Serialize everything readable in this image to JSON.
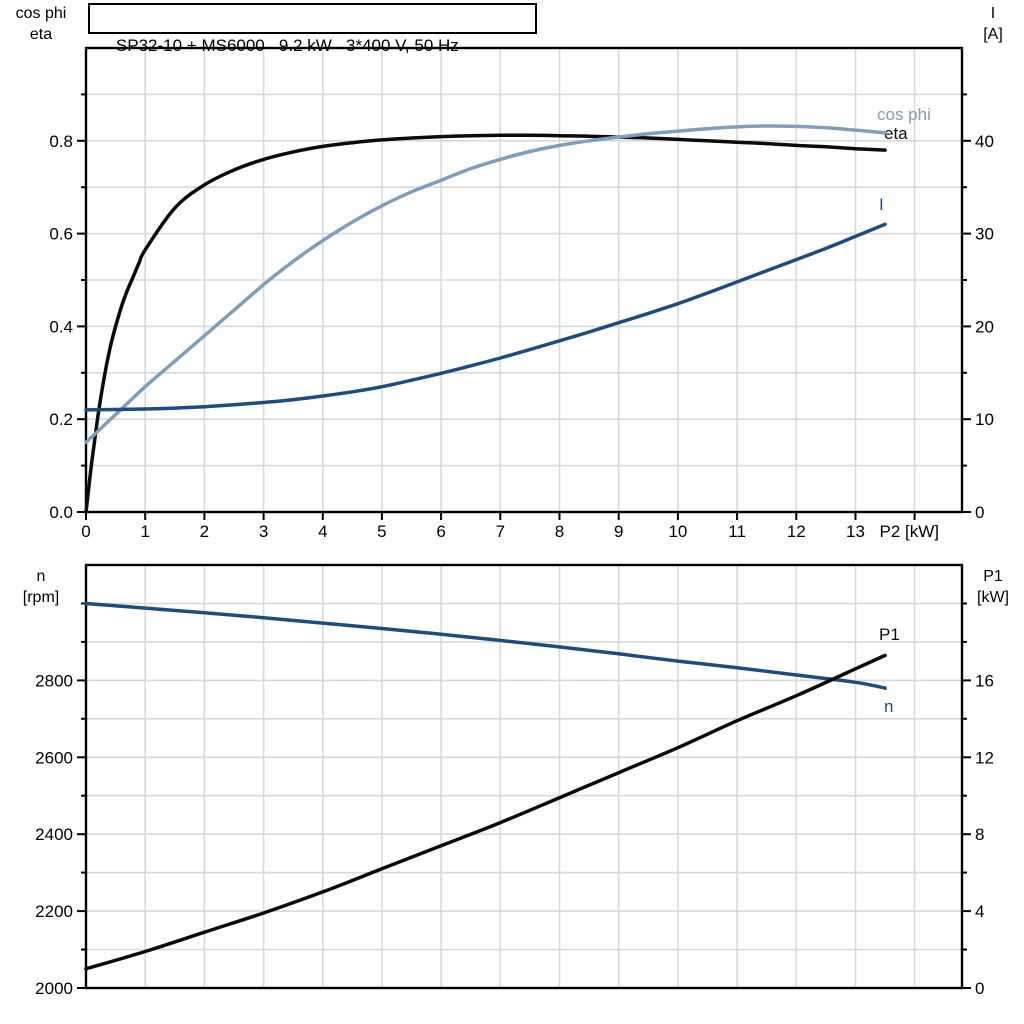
{
  "title": "SP32-10 + MS6000   9.2 kW   3*400 V, 50 Hz",
  "colors": {
    "black_curve": "#0B0B0B",
    "dark_blue_curve": "#1B4D80",
    "light_blue_curve": "#7E9EBD",
    "grid": "#D6D9DC",
    "axis": "#000000",
    "text": "#000000"
  },
  "chart_data": [
    {
      "name": "motor-curves-top",
      "type": "line",
      "title": "SP32-10 + MS6000   9.2 kW   3*400 V, 50 Hz",
      "x_label": "P2 [kW]",
      "x_range": [
        0,
        14.8
      ],
      "x_ticks": [
        "0",
        "1",
        "2",
        "3",
        "4",
        "5",
        "6",
        "7",
        "8",
        "9",
        "10",
        "11",
        "12",
        "13"
      ],
      "grid": true,
      "y_left": {
        "title_lines": [
          "cos phi",
          "eta"
        ],
        "ticks": [
          "0.0",
          "0.2",
          "0.4",
          "0.6",
          "0.8"
        ],
        "range": [
          0,
          1.0
        ]
      },
      "y_right": {
        "title_lines": [
          "I",
          "[A]"
        ],
        "ticks": [
          "0",
          "10",
          "20",
          "30",
          "40"
        ],
        "range": [
          0,
          50
        ]
      },
      "series": [
        {
          "name": "eta",
          "label": "eta",
          "axis": "left",
          "color": "#0B0B0B",
          "x": [
            0,
            0.1,
            0.2,
            0.3,
            0.4,
            0.5,
            0.6,
            0.7,
            0.8,
            0.9,
            1,
            1.5,
            2,
            2.5,
            3,
            3.5,
            4,
            4.5,
            5,
            5.5,
            6,
            6.5,
            7,
            7.5,
            8,
            8.5,
            9,
            9.5,
            10,
            10.5,
            11,
            11.5,
            12,
            12.5,
            13,
            13.5
          ],
          "y": [
            0,
            0.11,
            0.205,
            0.285,
            0.35,
            0.4,
            0.443,
            0.478,
            0.508,
            0.538,
            0.565,
            0.655,
            0.705,
            0.737,
            0.76,
            0.776,
            0.788,
            0.796,
            0.802,
            0.806,
            0.809,
            0.811,
            0.812,
            0.812,
            0.811,
            0.81,
            0.808,
            0.806,
            0.803,
            0.8,
            0.797,
            0.794,
            0.79,
            0.787,
            0.783,
            0.78
          ]
        },
        {
          "name": "cos_phi",
          "label": "cos phi",
          "axis": "left",
          "color": "#7E9EBD",
          "x": [
            0,
            0.5,
            1,
            1.5,
            2,
            2.5,
            3,
            3.5,
            4,
            4.5,
            5,
            5.5,
            6,
            6.5,
            7,
            7.5,
            8,
            8.5,
            9,
            9.5,
            10,
            10.5,
            11,
            11.5,
            12,
            12.5,
            13,
            13.5
          ],
          "y": [
            0.15,
            0.21,
            0.27,
            0.325,
            0.38,
            0.435,
            0.49,
            0.54,
            0.585,
            0.625,
            0.66,
            0.69,
            0.715,
            0.74,
            0.76,
            0.777,
            0.79,
            0.8,
            0.808,
            0.815,
            0.821,
            0.826,
            0.83,
            0.832,
            0.831,
            0.828,
            0.823,
            0.817
          ]
        },
        {
          "name": "I",
          "label": "I",
          "axis": "right",
          "color": "#1B4D80",
          "x": [
            0,
            0.5,
            1,
            1.5,
            2,
            2.5,
            3,
            3.5,
            4,
            4.5,
            5,
            5.5,
            6,
            6.5,
            7,
            7.5,
            8,
            8.5,
            9,
            9.5,
            10,
            10.5,
            11,
            11.5,
            12,
            12.5,
            13,
            13.5
          ],
          "y": [
            11.0,
            11.05,
            11.1,
            11.2,
            11.35,
            11.55,
            11.8,
            12.1,
            12.5,
            12.95,
            13.5,
            14.2,
            14.95,
            15.75,
            16.6,
            17.5,
            18.45,
            19.4,
            20.4,
            21.4,
            22.45,
            23.6,
            24.8,
            26.0,
            27.2,
            28.4,
            29.7,
            31.0
          ]
        }
      ]
    },
    {
      "name": "motor-curves-bottom",
      "type": "line",
      "title": "",
      "x_label": "",
      "x_range": [
        0,
        14.8
      ],
      "x_ticks": [],
      "grid": true,
      "y_left": {
        "title_lines": [
          "n",
          "[rpm]"
        ],
        "ticks": [
          "2000",
          "2200",
          "2400",
          "2600",
          "2800"
        ],
        "range": [
          2000,
          3100
        ]
      },
      "y_right": {
        "title_lines": [
          "P1",
          "[kW]"
        ],
        "ticks": [
          "0",
          "4",
          "8",
          "12",
          "16"
        ],
        "range": [
          0,
          22
        ]
      },
      "series": [
        {
          "name": "n",
          "label": "n",
          "axis": "left",
          "color": "#1B4D80",
          "x": [
            0,
            1,
            2,
            3,
            4,
            5,
            6,
            7,
            8,
            9,
            10,
            11,
            12,
            13,
            13.5
          ],
          "y": [
            3000,
            2988,
            2976,
            2963,
            2949,
            2935,
            2920,
            2904,
            2887,
            2869,
            2850,
            2833,
            2814,
            2795,
            2780
          ]
        },
        {
          "name": "P1",
          "label": "P1",
          "axis": "right",
          "color": "#0B0B0B",
          "x": [
            0,
            1,
            2,
            3,
            4,
            5,
            6,
            7,
            8,
            9,
            10,
            11,
            12,
            13,
            13.5
          ],
          "y": [
            1.0,
            1.9,
            2.9,
            3.9,
            5.0,
            6.2,
            7.4,
            8.6,
            9.9,
            11.2,
            12.5,
            13.9,
            15.2,
            16.6,
            17.3
          ]
        }
      ]
    }
  ]
}
